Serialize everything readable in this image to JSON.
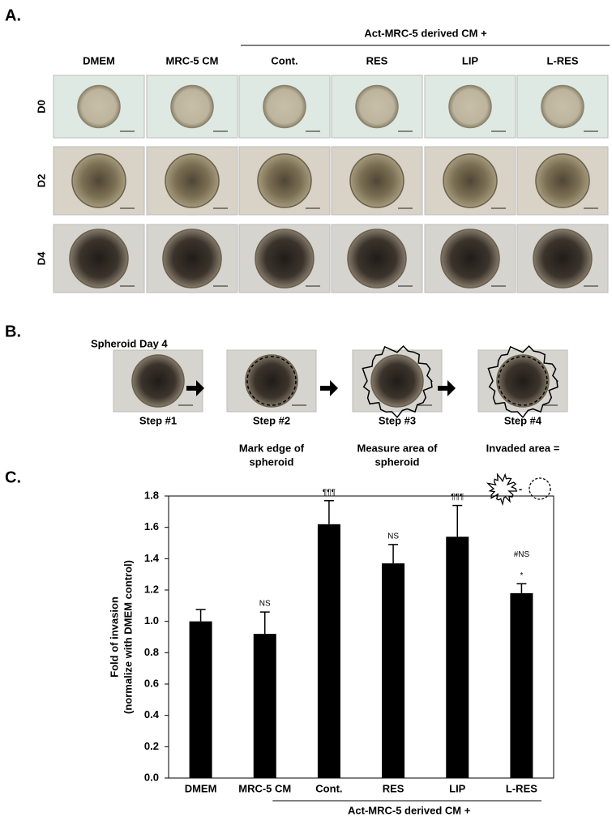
{
  "panel_labels": [
    "A.",
    "B.",
    "C."
  ],
  "panel_a": {
    "group_label": "Act-MRC-5 derived CM +",
    "columns": [
      "DMEM",
      "MRC-5 CM",
      "Cont.",
      "RES",
      "LIP",
      "L-RES"
    ],
    "rows": [
      "D0",
      "D2",
      "D4"
    ]
  },
  "panel_b": {
    "title": "Spheroid Day 4",
    "steps": [
      {
        "label": "Step #1"
      },
      {
        "label": "Step #2",
        "caption": [
          "Mark edge of",
          "spheroid"
        ]
      },
      {
        "label": "Step #3",
        "caption": [
          "Measure area of",
          "spheroid"
        ]
      },
      {
        "label": "Step #4",
        "caption": [
          "Invaded area ="
        ]
      }
    ],
    "operator": "-"
  },
  "chart_data": {
    "type": "bar",
    "y_label": [
      "Fold of invasion",
      "(normalize with DMEM control)"
    ],
    "categories": [
      "DMEM",
      "MRC-5 CM",
      "Cont.",
      "RES",
      "LIP",
      "L-RES"
    ],
    "values": [
      1.0,
      0.92,
      1.62,
      1.37,
      1.54,
      1.18
    ],
    "errors": [
      0.075,
      0.14,
      0.15,
      0.12,
      0.2,
      0.06
    ],
    "annotations": [
      null,
      [
        "NS"
      ],
      [
        "¶¶¶"
      ],
      [
        "NS"
      ],
      [
        "¶¶¶"
      ],
      [
        "#NS",
        "*"
      ]
    ],
    "group_label": "Act-MRC-5 derived CM +",
    "color": "#000000",
    "ylim": [
      0,
      1.8
    ],
    "yticks": [
      {
        "value": 0,
        "label": "0.0"
      },
      0.2,
      0.4,
      0.6,
      0.8,
      {
        "value": 1,
        "label": "1.0"
      },
      1.2,
      1.4,
      1.6,
      1.8
    ]
  }
}
